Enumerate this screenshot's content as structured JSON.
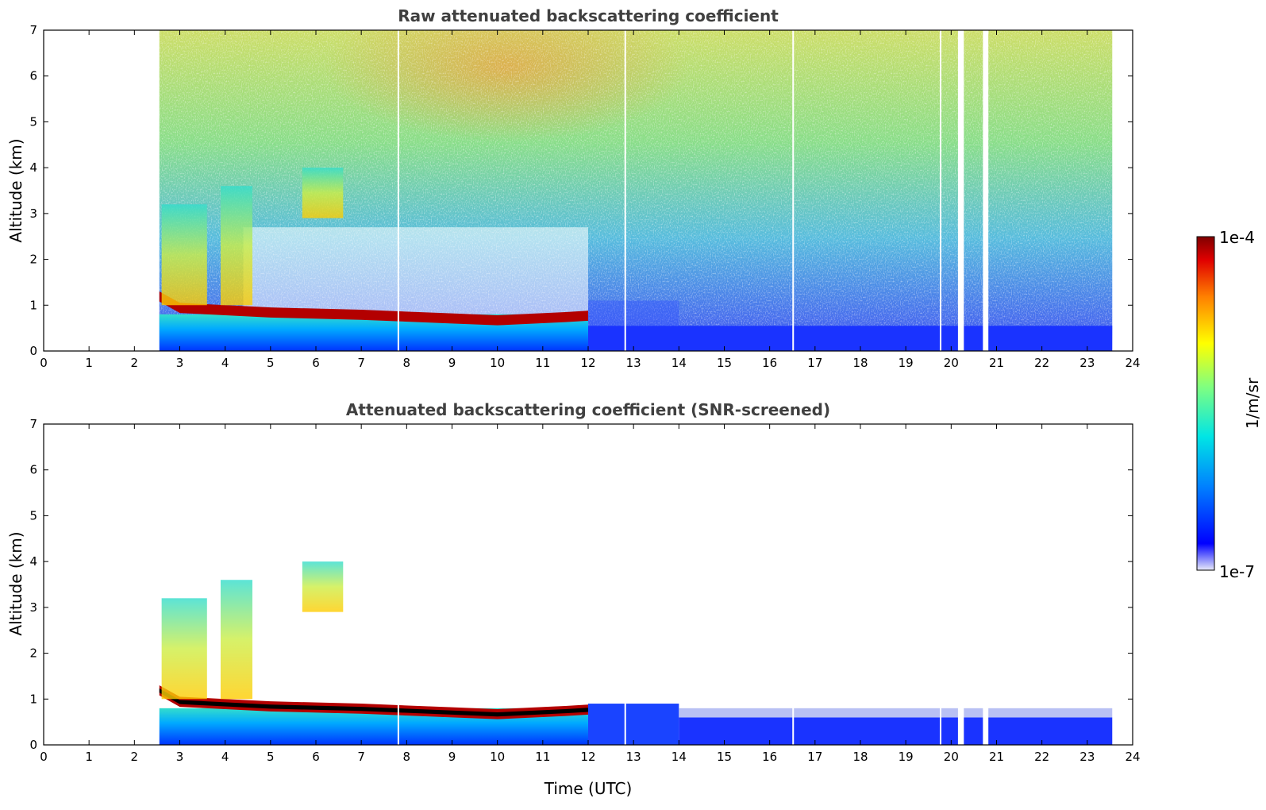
{
  "chart_data": [
    {
      "type": "heatmap",
      "title": "Raw attenuated backscattering coefficient",
      "xlabel": "",
      "ylabel": "Altitude (km)",
      "xlim": [
        0,
        24
      ],
      "ylim": [
        0,
        7
      ],
      "x_ticks": [
        "0",
        "1",
        "2",
        "3",
        "4",
        "5",
        "6",
        "7",
        "8",
        "9",
        "10",
        "11",
        "12",
        "13",
        "14",
        "15",
        "16",
        "17",
        "18",
        "19",
        "20",
        "21",
        "22",
        "23",
        "24"
      ],
      "y_ticks": [
        "0",
        "1",
        "2",
        "3",
        "4",
        "5",
        "6",
        "7"
      ],
      "data_start_time": 2.55,
      "data_end_time": 23.55,
      "boundary_layer_top_km": [
        [
          2.55,
          1.2
        ],
        [
          3.0,
          0.95
        ],
        [
          5.0,
          0.85
        ],
        [
          7.0,
          0.8
        ],
        [
          9.0,
          0.72
        ],
        [
          10.0,
          0.68
        ],
        [
          11.5,
          0.75
        ],
        [
          12.0,
          0.78
        ]
      ],
      "data_gaps_utc": [
        [
          7.8,
          7.82
        ],
        [
          12.8,
          12.82
        ],
        [
          16.5,
          16.52
        ],
        [
          19.75,
          19.78
        ],
        [
          20.15,
          20.28
        ],
        [
          20.7,
          20.82
        ]
      ],
      "plumes": [
        {
          "t0": 2.6,
          "t1": 3.6,
          "bottom_km": 1.0,
          "top_km": 3.2
        },
        {
          "t0": 3.9,
          "t1": 4.6,
          "bottom_km": 1.0,
          "top_km": 3.6
        },
        {
          "t0": 5.7,
          "t1": 6.6,
          "bottom_km": 2.9,
          "top_km": 4.0
        }
      ]
    },
    {
      "type": "heatmap",
      "title": "Attenuated backscattering coefficient (SNR-screened)",
      "xlabel": "Time (UTC)",
      "ylabel": "Altitude (km)",
      "xlim": [
        0,
        24
      ],
      "ylim": [
        0,
        7
      ],
      "x_ticks": [
        "0",
        "1",
        "2",
        "3",
        "4",
        "5",
        "6",
        "7",
        "8",
        "9",
        "10",
        "11",
        "12",
        "13",
        "14",
        "15",
        "16",
        "17",
        "18",
        "19",
        "20",
        "21",
        "22",
        "23",
        "24"
      ],
      "y_ticks": [
        "0",
        "1",
        "2",
        "3",
        "4",
        "5",
        "6",
        "7"
      ],
      "data_start_time": 2.55,
      "data_end_time": 23.55,
      "boundary_layer_top_km": [
        [
          12.0,
          0.8
        ],
        [
          12.5,
          1.0
        ],
        [
          13.5,
          1.1
        ],
        [
          14.0,
          0.85
        ],
        [
          16.0,
          0.75
        ],
        [
          18.0,
          0.65
        ],
        [
          20.0,
          0.6
        ],
        [
          22.0,
          0.6
        ],
        [
          23.5,
          0.55
        ]
      ],
      "data_gaps_utc": [
        [
          7.8,
          7.82
        ],
        [
          12.8,
          12.82
        ],
        [
          16.5,
          16.52
        ],
        [
          19.75,
          19.78
        ],
        [
          20.15,
          20.28
        ],
        [
          20.7,
          20.82
        ]
      ]
    }
  ],
  "colorbar": {
    "label": "1/m/sr",
    "max_label": "1e-4",
    "min_label": "1e-7",
    "scale": "log",
    "colormap_stops": [
      "#e8eaf8",
      "#0000ff",
      "#0080ff",
      "#00e5e5",
      "#80ff80",
      "#ffff00",
      "#ff8000",
      "#e00000",
      "#800000"
    ]
  },
  "colors": {
    "title": "#404040",
    "axes": "#000000",
    "screened_core": "#000000",
    "background": "#ffffff"
  }
}
